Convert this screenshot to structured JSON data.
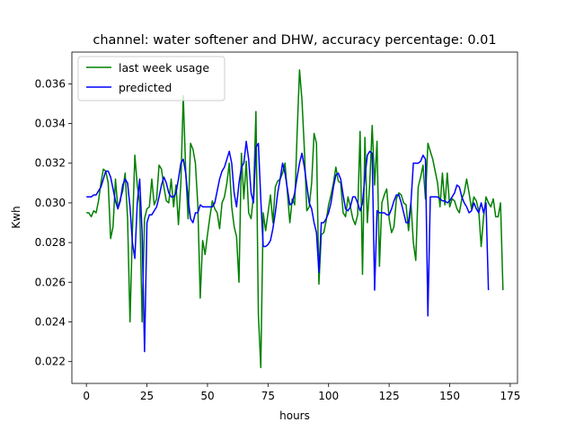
{
  "chart_data": {
    "type": "line",
    "title": "channel: water softener and DHW, accuracy percentage: 0.01",
    "xlabel": "hours",
    "ylabel": "Kwh",
    "xlim": [
      -6,
      178
    ],
    "ylim": [
      0.0209,
      0.0376
    ],
    "xticks": [
      0,
      25,
      50,
      75,
      100,
      125,
      150,
      175
    ],
    "yticks": [
      0.022,
      0.024,
      0.026,
      0.028,
      0.03,
      0.032,
      0.034,
      0.036
    ],
    "ytick_labels": [
      "0.022",
      "0.024",
      "0.026",
      "0.028",
      "0.030",
      "0.032",
      "0.034",
      "0.036"
    ],
    "xtick_labels": [
      "0",
      "25",
      "50",
      "75",
      "100",
      "125",
      "150",
      "175"
    ],
    "legend_position": "upper-left",
    "series": [
      {
        "name": "last week usage",
        "color": "#008000",
        "values": [
          0.0295,
          0.0295,
          0.0293,
          0.0296,
          0.0295,
          0.0301,
          0.031,
          0.0317,
          0.0316,
          0.031,
          0.0282,
          0.0288,
          0.0312,
          0.0297,
          0.0302,
          0.0306,
          0.0315,
          0.0292,
          0.024,
          0.0286,
          0.0324,
          0.0309,
          0.03,
          0.024,
          0.0292,
          0.0297,
          0.0298,
          0.0312,
          0.0299,
          0.0302,
          0.0319,
          0.0317,
          0.0308,
          0.0301,
          0.03,
          0.0312,
          0.0298,
          0.0309,
          0.0289,
          0.031,
          0.0354,
          0.0316,
          0.0292,
          0.033,
          0.0327,
          0.032,
          0.0299,
          0.0252,
          0.0281,
          0.0274,
          0.0284,
          0.0293,
          0.0301,
          0.0297,
          0.0295,
          0.0287,
          0.03,
          0.0303,
          0.031,
          0.032,
          0.0298,
          0.0288,
          0.0283,
          0.026,
          0.0325,
          0.0302,
          0.0321,
          0.0295,
          0.0292,
          0.0304,
          0.0346,
          0.0244,
          0.0217,
          0.0295,
          0.0286,
          0.0295,
          0.0304,
          0.029,
          0.0308,
          0.0311,
          0.0312,
          0.0315,
          0.032,
          0.0305,
          0.029,
          0.0302,
          0.0299,
          0.0335,
          0.0367,
          0.0352,
          0.0327,
          0.0296,
          0.0298,
          0.031,
          0.0335,
          0.033,
          0.0259,
          0.0284,
          0.0285,
          0.0291,
          0.0299,
          0.0304,
          0.031,
          0.0318,
          0.0311,
          0.031,
          0.0295,
          0.0293,
          0.0303,
          0.0298,
          0.0292,
          0.0289,
          0.0294,
          0.0336,
          0.0264,
          0.0333,
          0.029,
          0.031,
          0.0339,
          0.0309,
          0.0331,
          0.0268,
          0.03,
          0.0304,
          0.0307,
          0.0292,
          0.0285,
          0.0288,
          0.0302,
          0.0305,
          0.0304,
          0.03,
          0.0299,
          0.0286,
          0.03,
          0.028,
          0.0271,
          0.0308,
          0.0313,
          0.0319,
          0.0302,
          0.033,
          0.0326,
          0.0322,
          0.0316,
          0.031,
          0.0298,
          0.0315,
          0.0299,
          0.0315,
          0.0298,
          0.0302,
          0.0301,
          0.0297,
          0.0295,
          0.0302,
          0.0305,
          0.0312,
          0.0305,
          0.0297,
          0.0303,
          0.0301,
          0.0296,
          0.0278,
          0.0293,
          0.0303,
          0.03,
          0.0298,
          0.0302,
          0.0293,
          0.0293,
          0.03,
          0.0256
        ]
      },
      {
        "name": "predicted",
        "color": "#0000ff",
        "values": [
          0.0303,
          0.0303,
          0.0303,
          0.0304,
          0.0304,
          0.0306,
          0.0308,
          0.0312,
          0.0316,
          0.0316,
          0.0313,
          0.0307,
          0.0301,
          0.0297,
          0.0301,
          0.0309,
          0.0312,
          0.031,
          0.0298,
          0.028,
          0.0272,
          0.03,
          0.0312,
          0.0285,
          0.0225,
          0.029,
          0.0294,
          0.0294,
          0.0296,
          0.0298,
          0.0303,
          0.0309,
          0.0313,
          0.031,
          0.0305,
          0.0303,
          0.0303,
          0.0305,
          0.0312,
          0.032,
          0.0322,
          0.0315,
          0.0302,
          0.0292,
          0.029,
          0.0295,
          0.0295,
          0.0299,
          0.0298,
          0.0298,
          0.0298,
          0.0298,
          0.0298,
          0.03,
          0.0306,
          0.0312,
          0.0316,
          0.0318,
          0.0322,
          0.0326,
          0.032,
          0.0305,
          0.0298,
          0.031,
          0.0318,
          0.032,
          0.0331,
          0.0322,
          0.0305,
          0.03,
          0.0328,
          0.033,
          0.0302,
          0.0278,
          0.0278,
          0.0279,
          0.0281,
          0.0287,
          0.0295,
          0.0305,
          0.0312,
          0.032,
          0.0315,
          0.0307,
          0.0299,
          0.03,
          0.0305,
          0.0313,
          0.032,
          0.0325,
          0.0318,
          0.0309,
          0.03,
          0.0297,
          0.029,
          0.0285,
          0.0265,
          0.029,
          0.029,
          0.0292,
          0.0295,
          0.03,
          0.0308,
          0.0314,
          0.0315,
          0.0312,
          0.0304,
          0.0297,
          0.0296,
          0.0298,
          0.0303,
          0.0303,
          0.03,
          0.0296,
          0.03,
          0.0313,
          0.0324,
          0.0326,
          0.0325,
          0.0256,
          0.0296,
          0.0295,
          0.0295,
          0.0295,
          0.0294,
          0.0294,
          0.0297,
          0.0301,
          0.0304,
          0.0304,
          0.03,
          0.0295,
          0.029,
          0.029,
          0.03,
          0.032,
          0.032,
          0.032,
          0.0321,
          0.0324,
          0.0322,
          0.0243,
          0.0303,
          0.0303,
          0.0303,
          0.0303,
          0.0302,
          0.0301,
          0.0301,
          0.03,
          0.0301,
          0.0303,
          0.0305,
          0.0309,
          0.0308,
          0.0303,
          0.03,
          0.0298,
          0.0295,
          0.0296,
          0.03,
          0.0297,
          0.0295,
          0.03,
          0.0295,
          0.03,
          0.0256
        ]
      }
    ]
  }
}
